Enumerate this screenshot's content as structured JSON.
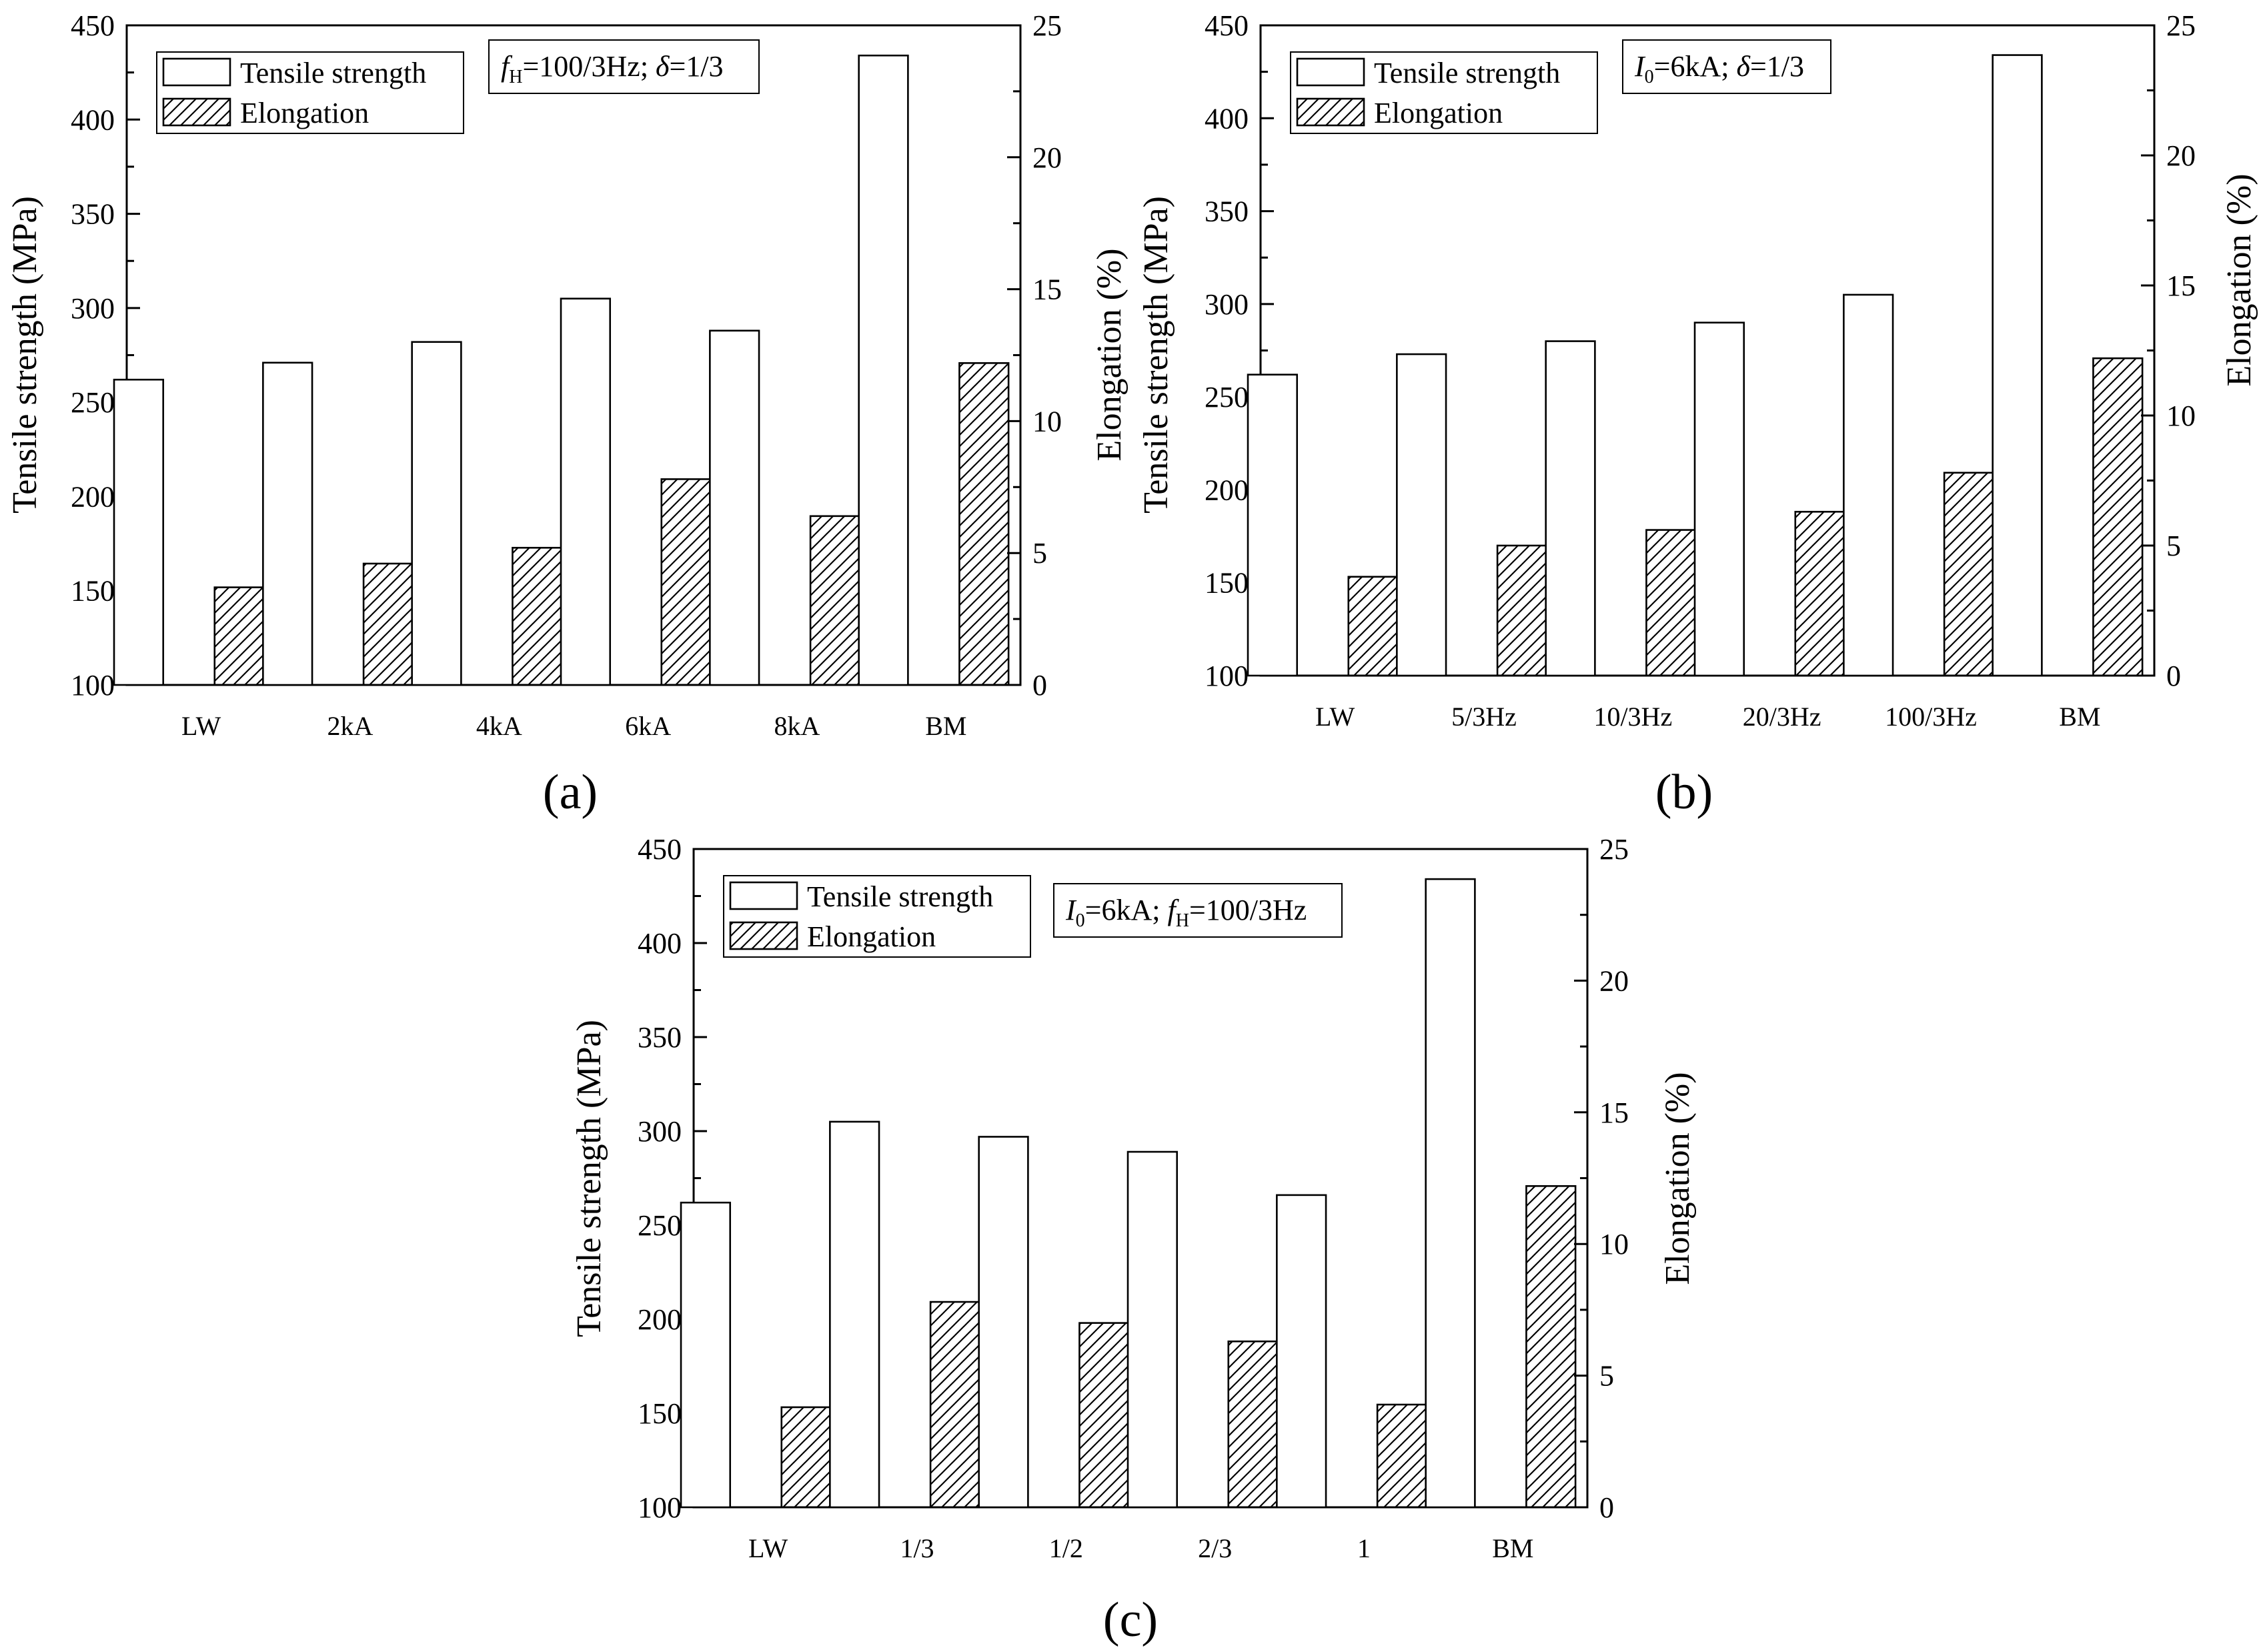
{
  "chart_data": [
    {
      "id": "a",
      "type": "bar",
      "panel_label": "(a)",
      "categories": [
        "LW",
        "2kA",
        "4kA",
        "6kA",
        "8kA",
        "BM"
      ],
      "series": [
        {
          "name": "Tensile strength",
          "axis": "left",
          "style": "open",
          "values": [
            262,
            271,
            282,
            305,
            288,
            434
          ]
        },
        {
          "name": "Elongation",
          "axis": "right",
          "style": "hatched",
          "values": [
            3.7,
            4.6,
            5.2,
            7.8,
            6.4,
            12.2
          ]
        }
      ],
      "ylabel": "Tensile strength (MPa)",
      "y2label": "Elongation (%)",
      "ylim": [
        100,
        450
      ],
      "y2lim": [
        0,
        25
      ],
      "yticks": [
        100,
        150,
        200,
        250,
        300,
        350,
        400,
        450
      ],
      "y2ticks": [
        0,
        5,
        10,
        15,
        20,
        25
      ],
      "legend": [
        "Tensile strength",
        "Elongation"
      ],
      "annotation": {
        "parts": [
          {
            "t": "f",
            "i": true
          },
          {
            "t": "H",
            "sub": true
          },
          {
            "t": "=100/3Hz; "
          },
          {
            "t": "δ",
            "i": true
          },
          {
            "t": "=1/3"
          }
        ]
      }
    },
    {
      "id": "b",
      "type": "bar",
      "panel_label": "(b)",
      "categories": [
        "LW",
        "5/3Hz",
        "10/3Hz",
        "20/3Hz",
        "100/3Hz",
        "BM"
      ],
      "series": [
        {
          "name": "Tensile strength",
          "axis": "left",
          "style": "open",
          "values": [
            262,
            273,
            280,
            290,
            305,
            434
          ]
        },
        {
          "name": "Elongation",
          "axis": "right",
          "style": "hatched",
          "values": [
            3.8,
            5.0,
            5.6,
            6.3,
            7.8,
            12.2
          ]
        }
      ],
      "ylabel": "Tensile strength (MPa)",
      "y2label": "Elongation (%)",
      "ylim": [
        100,
        450
      ],
      "y2lim": [
        0,
        25
      ],
      "yticks": [
        100,
        150,
        200,
        250,
        300,
        350,
        400,
        450
      ],
      "y2ticks": [
        0,
        5,
        10,
        15,
        20,
        25
      ],
      "legend": [
        "Tensile strength",
        "Elongation"
      ],
      "annotation": {
        "parts": [
          {
            "t": "I",
            "i": true
          },
          {
            "t": "0",
            "sub": true
          },
          {
            "t": "=6kA; "
          },
          {
            "t": "δ",
            "i": true
          },
          {
            "t": "=1/3"
          }
        ]
      }
    },
    {
      "id": "c",
      "type": "bar",
      "panel_label": "(c)",
      "categories": [
        "LW",
        "1/3",
        "1/2",
        "2/3",
        "1",
        "BM"
      ],
      "series": [
        {
          "name": "Tensile strength",
          "axis": "left",
          "style": "open",
          "values": [
            262,
            305,
            297,
            289,
            266,
            434
          ]
        },
        {
          "name": "Elongation",
          "axis": "right",
          "style": "hatched",
          "values": [
            3.8,
            7.8,
            7.0,
            6.3,
            3.9,
            12.2
          ]
        }
      ],
      "ylabel": "Tensile strength (MPa)",
      "y2label": "Elongation (%)",
      "ylim": [
        100,
        450
      ],
      "y2lim": [
        0,
        25
      ],
      "yticks": [
        100,
        150,
        200,
        250,
        300,
        350,
        400,
        450
      ],
      "y2ticks": [
        0,
        5,
        10,
        15,
        20,
        25
      ],
      "legend": [
        "Tensile strength",
        "Elongation"
      ],
      "annotation": {
        "parts": [
          {
            "t": "I",
            "i": true
          },
          {
            "t": "0",
            "sub": true
          },
          {
            "t": "=6kA; "
          },
          {
            "t": "f",
            "i": true
          },
          {
            "t": "H",
            "sub": true
          },
          {
            "t": "=100/3Hz"
          }
        ]
      }
    }
  ]
}
